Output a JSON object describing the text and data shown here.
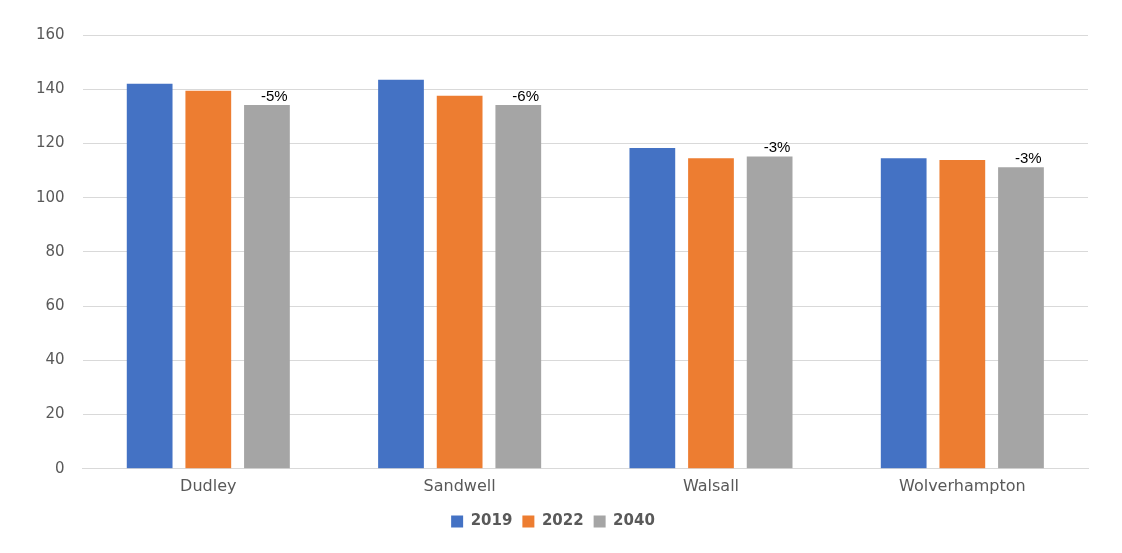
{
  "chart_data": {
    "type": "bar",
    "categories": [
      "Dudley",
      "Sandwell",
      "Walsall",
      "Wolverhampton"
    ],
    "series": [
      {
        "name": "2019",
        "color": "#4472c4",
        "values": [
          142,
          143.5,
          118.3,
          114.5
        ]
      },
      {
        "name": "2022",
        "color": "#ed7d31",
        "values": [
          139.4,
          137.6,
          114.5,
          113.9
        ]
      },
      {
        "name": "2040",
        "color": "#a5a5a5",
        "values": [
          134.2,
          134.2,
          115.2,
          111.2
        ]
      }
    ],
    "annotations": [
      "-5%",
      "-6%",
      "-3%",
      "-3%"
    ],
    "ylim": [
      0,
      160
    ],
    "yticks": [
      0,
      20,
      40,
      60,
      80,
      100,
      120,
      140,
      160
    ],
    "grid": "y",
    "legend": "bottom"
  }
}
